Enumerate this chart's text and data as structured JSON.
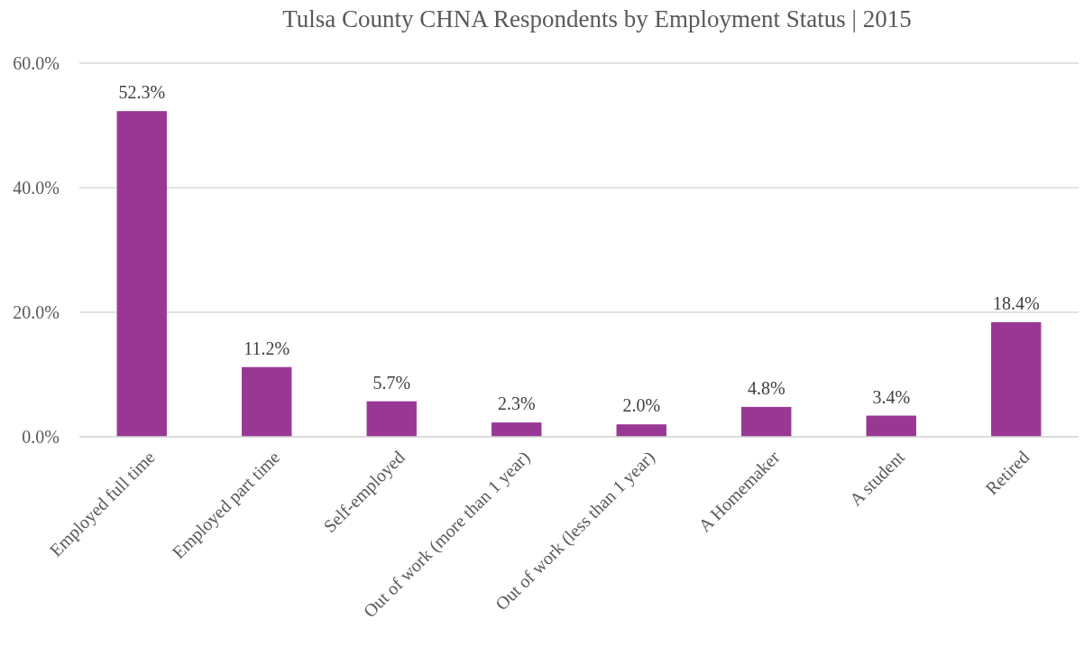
{
  "chart_data": {
    "type": "bar",
    "title": "Tulsa County CHNA Respondents by Employment Status | 2015",
    "categories": [
      "Employed full time",
      "Employed part time",
      "Self-employed",
      "Out of work (more than 1 year)",
      "Out of work (less than 1 year)",
      "A Homemaker",
      "A student",
      "Retired"
    ],
    "values": [
      52.3,
      11.2,
      5.7,
      2.3,
      2.0,
      4.8,
      3.4,
      18.4
    ],
    "value_labels": [
      "52.3%",
      "11.2%",
      "5.7%",
      "2.3%",
      "2.0%",
      "4.8%",
      "3.4%",
      "18.4%"
    ],
    "color": "#993894",
    "ylim": [
      0,
      60
    ],
    "yticks": [
      {
        "value": 0,
        "label": "0.0%"
      },
      {
        "value": 20,
        "label": "20.0%"
      },
      {
        "value": 40,
        "label": "40.0%"
      },
      {
        "value": 60,
        "label": "60.0%"
      }
    ],
    "grid": "y"
  }
}
